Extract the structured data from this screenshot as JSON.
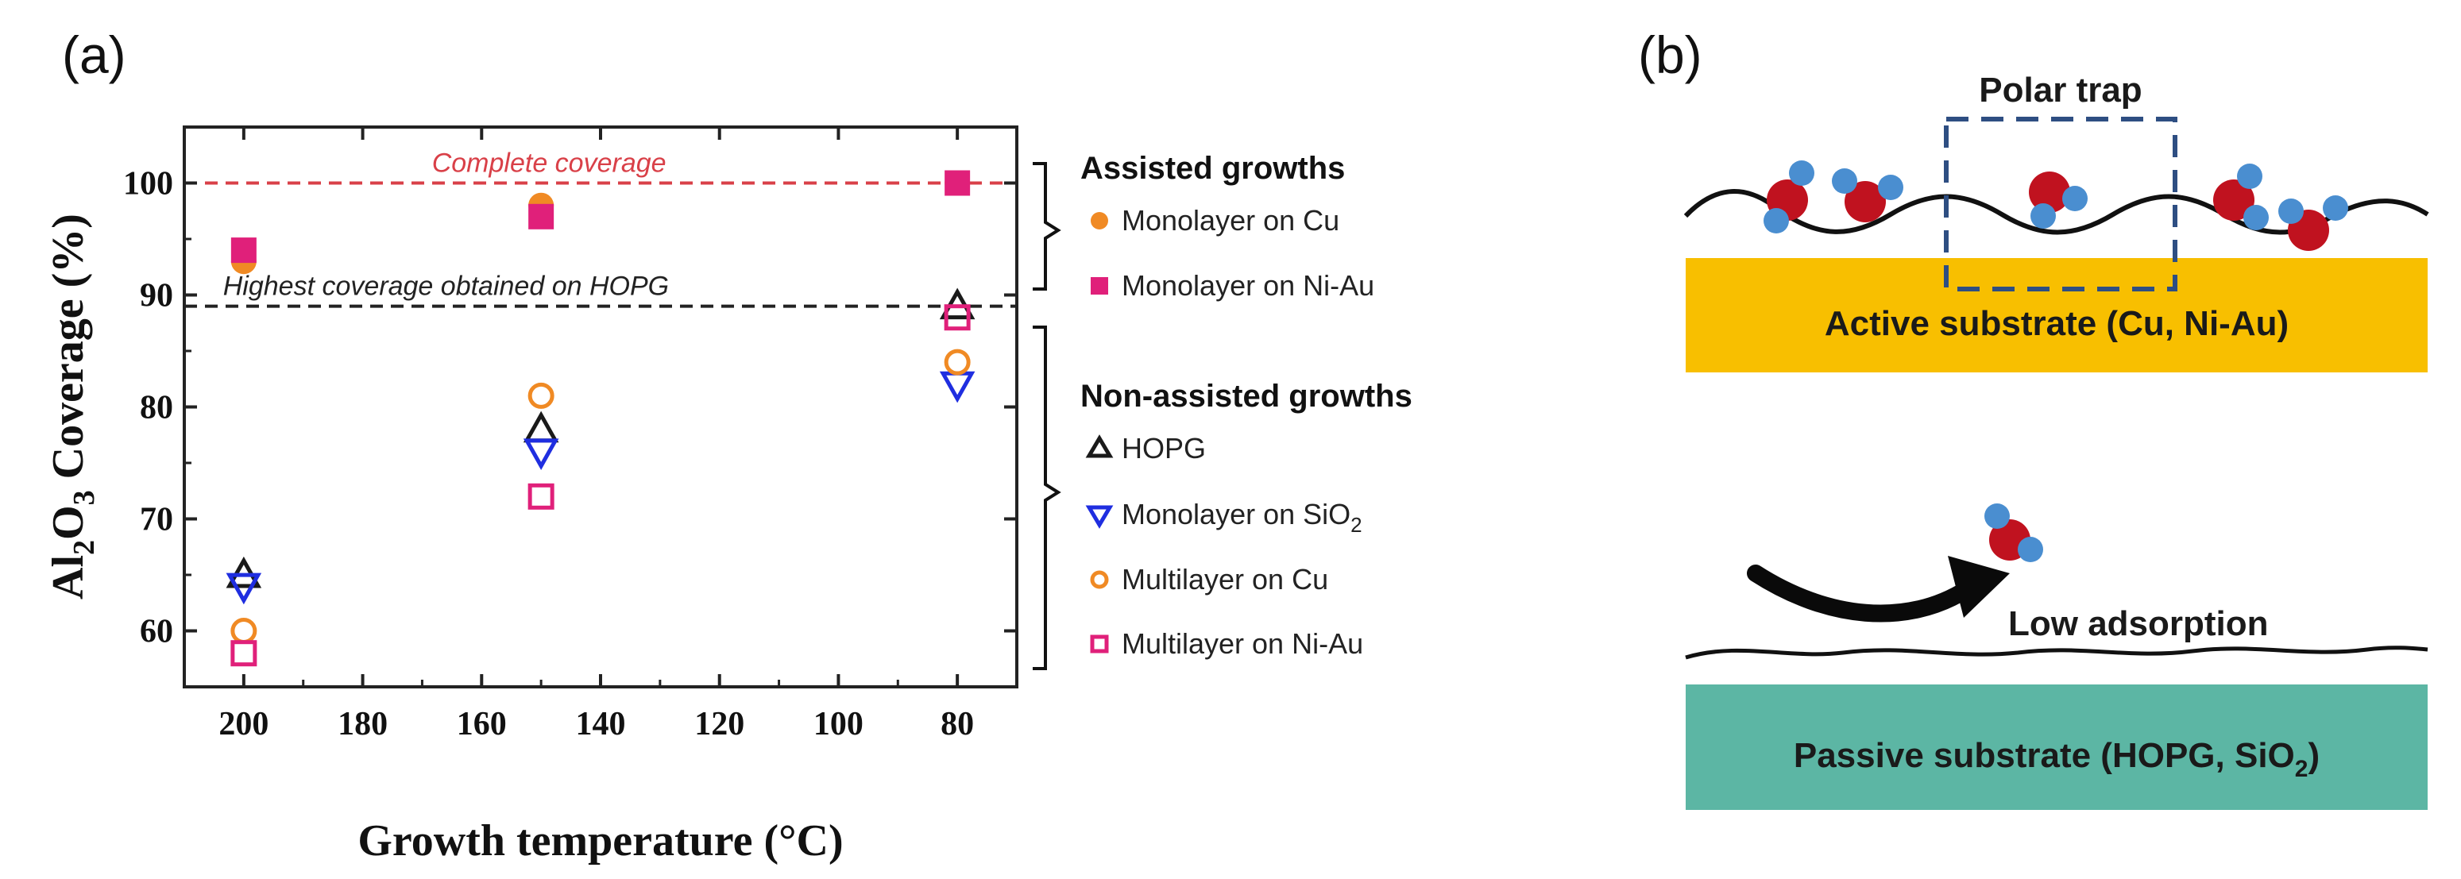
{
  "panel_a_label": "(a)",
  "panel_b_label": "(b)",
  "chart_data": {
    "type": "scatter",
    "title": "",
    "xlabel": "Growth temperature (°C)",
    "ylabel_parts": {
      "pre": "Al",
      "sub1": "2",
      "mid": "O",
      "sub2": "3",
      "post": " Coverage (%)"
    },
    "xlim": [
      210,
      70
    ],
    "ylim": [
      55,
      105
    ],
    "xticks": [
      200,
      180,
      160,
      140,
      120,
      100,
      80
    ],
    "yticks": [
      60,
      70,
      80,
      90,
      100
    ],
    "reference_lines": [
      {
        "y": 100,
        "label": "Complete coverage",
        "color": "#d94048"
      },
      {
        "y": 89,
        "label": "Highest coverage obtained on HOPG",
        "color": "#222222"
      }
    ],
    "series": [
      {
        "name": "Monolayer on Cu",
        "group": "assisted",
        "marker": "circle-filled",
        "color": "#f08a24",
        "x": [
          200,
          150,
          80
        ],
        "y": [
          93,
          98,
          100
        ]
      },
      {
        "name": "Monolayer on Ni-Au",
        "group": "assisted",
        "marker": "square-filled",
        "color": "#e0207a",
        "x": [
          200,
          150,
          80
        ],
        "y": [
          94,
          97,
          100
        ]
      },
      {
        "name": "HOPG",
        "group": "non-assisted",
        "marker": "triangle-up",
        "color": "#1a1a1a",
        "x": [
          200,
          150,
          80
        ],
        "y": [
          65,
          78,
          89
        ]
      },
      {
        "name": "Monolayer on SiO2",
        "name_parts": {
          "pre": "Monolayer on SiO",
          "sub": "2"
        },
        "group": "non-assisted",
        "marker": "triangle-down",
        "color": "#1f2ee0",
        "x": [
          200,
          150,
          80
        ],
        "y": [
          64,
          76,
          82
        ]
      },
      {
        "name": "Multilayer on Cu",
        "group": "non-assisted",
        "marker": "circle-open",
        "color": "#f08a24",
        "x": [
          200,
          150,
          80
        ],
        "y": [
          60,
          81,
          84
        ]
      },
      {
        "name": "Multilayer on Ni-Au",
        "group": "non-assisted",
        "marker": "square-open",
        "color": "#e0207a",
        "x": [
          200,
          150,
          80
        ],
        "y": [
          58,
          72,
          88
        ]
      }
    ],
    "legend_groups": {
      "assisted": "Assisted growths",
      "non_assisted": "Non-assisted growths"
    }
  },
  "diagram": {
    "polar_trap_label": "Polar  trap",
    "active_substrate_label": "Active substrate (Cu, Ni-Au)",
    "low_adsorption_label": "Low adsorption",
    "passive_substrate_pre": "Passive substrate (HOPG, SiO",
    "passive_substrate_sub": "2",
    "passive_substrate_post": ")",
    "colors": {
      "active": "#f8bf00",
      "passive": "#5cb6a4",
      "oxygen": "#c0121f",
      "hydrogen": "#4a8ed0",
      "trap_box": "#2e4e82"
    }
  }
}
